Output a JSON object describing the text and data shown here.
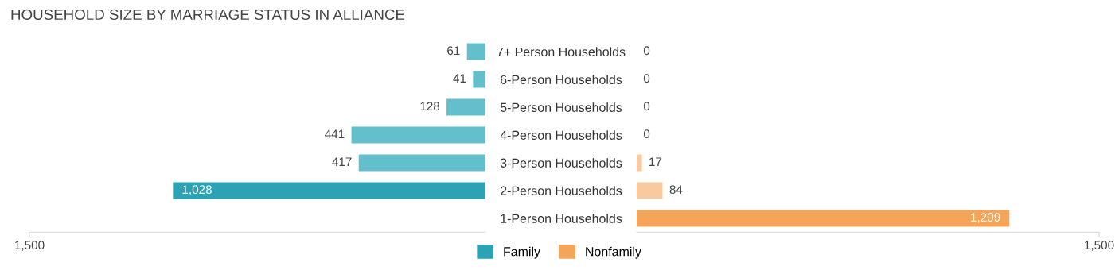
{
  "chart_data": [
    {
      "type": "bar",
      "orientation": "horizontal",
      "title": "HOUSEHOLD SIZE BY MARRIAGE STATUS IN ALLIANCE",
      "categories": [
        "7+ Person Households",
        "6-Person Households",
        "5-Person Households",
        "4-Person Households",
        "3-Person Households",
        "2-Person Households",
        "1-Person Households"
      ],
      "series": [
        {
          "name": "Family",
          "color": "#2ba3b4",
          "colors": [
            "#62bfcb",
            "#62bfcb",
            "#62bfcb",
            "#62bfcb",
            "#62bfcb",
            "#2ba3b4",
            "#62bfcb"
          ],
          "values": [
            61,
            41,
            128,
            441,
            417,
            1028,
            0
          ],
          "value_labels": [
            "61",
            "41",
            "128",
            "441",
            "417",
            "1,028",
            null
          ]
        }
      ],
      "xlim": [
        1500,
        0
      ],
      "xticks": [
        {
          "value": 1500,
          "label": "1,500"
        }
      ],
      "legend": "bottom",
      "grid": false
    },
    {
      "type": "bar",
      "orientation": "horizontal",
      "categories": [
        null,
        null,
        null,
        null,
        null,
        null,
        null
      ],
      "series": [
        {
          "name": "Nonfamily",
          "color": "#f5a55a",
          "colors": [
            "#f9caa0",
            "#f9caa0",
            "#f9caa0",
            "#f9caa0",
            "#f9caa0",
            "#f9caa0",
            "#f5a55a"
          ],
          "values": [
            0,
            0,
            0,
            0,
            17,
            84,
            1209
          ],
          "value_labels": [
            "0",
            "0",
            "0",
            "0",
            "17",
            "84",
            "1,209"
          ]
        }
      ],
      "xlim": [
        0,
        1500
      ],
      "xticks": [
        {
          "value": 1500,
          "label": "1,500"
        }
      ],
      "tick_labels": "x",
      "legend": "bottom",
      "grid": false
    }
  ]
}
